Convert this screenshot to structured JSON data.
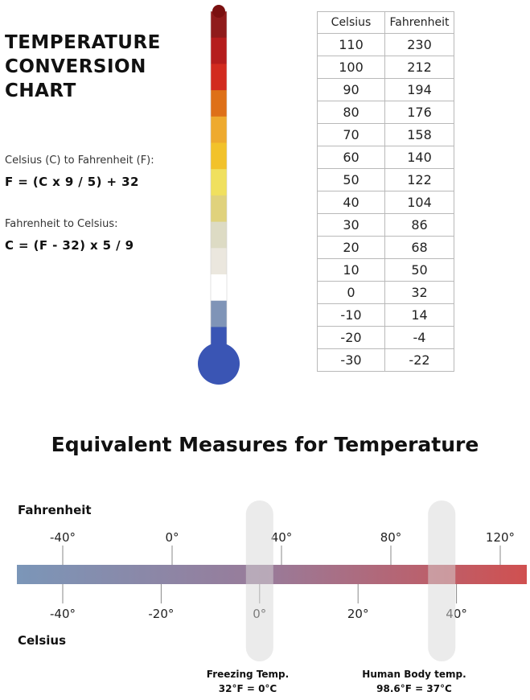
{
  "header": {
    "title_lines": [
      "TEMPERATURE",
      "CONVERSION",
      "CHART"
    ]
  },
  "formulas": {
    "c_to_f_label": "Celsius (C) to Fahrenheit (F):",
    "c_to_f": "F = (C x 9 / 5) + 32",
    "f_to_c_label": "Fahrenheit to Celsius:",
    "f_to_c": "C = (F - 32) x 5 / 9"
  },
  "thermometer": {
    "segment_colors": [
      "#8f1b1b",
      "#b51d1d",
      "#d22b1f",
      "#de7018",
      "#eeaa2e",
      "#f2c22a",
      "#f0e05e",
      "#e0d27c",
      "#dddbc4",
      "#ebe7de",
      "#ffffff",
      "#7f94b7",
      "#3a55b4"
    ],
    "bulb_color": "#3a55b4",
    "cap_color": "#7a1010"
  },
  "conversion_table": {
    "headers": [
      "Celsius",
      "Fahrenheit"
    ],
    "rows": [
      [
        "110",
        "230"
      ],
      [
        "100",
        "212"
      ],
      [
        "90",
        "194"
      ],
      [
        "80",
        "176"
      ],
      [
        "70",
        "158"
      ],
      [
        "60",
        "140"
      ],
      [
        "50",
        "122"
      ],
      [
        "40",
        "104"
      ],
      [
        "30",
        "86"
      ],
      [
        "20",
        "68"
      ],
      [
        "10",
        "50"
      ],
      [
        "0",
        "32"
      ],
      [
        "-10",
        "14"
      ],
      [
        "-20",
        "-4"
      ],
      [
        "-30",
        "-22"
      ]
    ]
  },
  "equivalents": {
    "title": "Equivalent Measures for Temperature",
    "fahrenheit_label": "Fahrenheit",
    "celsius_label": "Celsius",
    "fahrenheit_ticks": [
      -40,
      0,
      40,
      80,
      120
    ],
    "fahrenheit_tick_labels": [
      "-40°",
      "0°",
      "40°",
      "80°",
      "120°"
    ],
    "celsius_ticks": [
      -40,
      -20,
      0,
      20,
      40
    ],
    "celsius_tick_labels": [
      "-40°",
      "-20°",
      "0°",
      "20°",
      "40°"
    ],
    "gradient_colors": [
      "#7b96b8",
      "#9a7a98",
      "#d05050"
    ],
    "freezing": {
      "title": "Freezing Temp.",
      "value": "32°F = 0°C",
      "celsius": 0
    },
    "body": {
      "title": "Human Body temp.",
      "value": "98.6°F = 37°C",
      "celsius": 37
    }
  }
}
